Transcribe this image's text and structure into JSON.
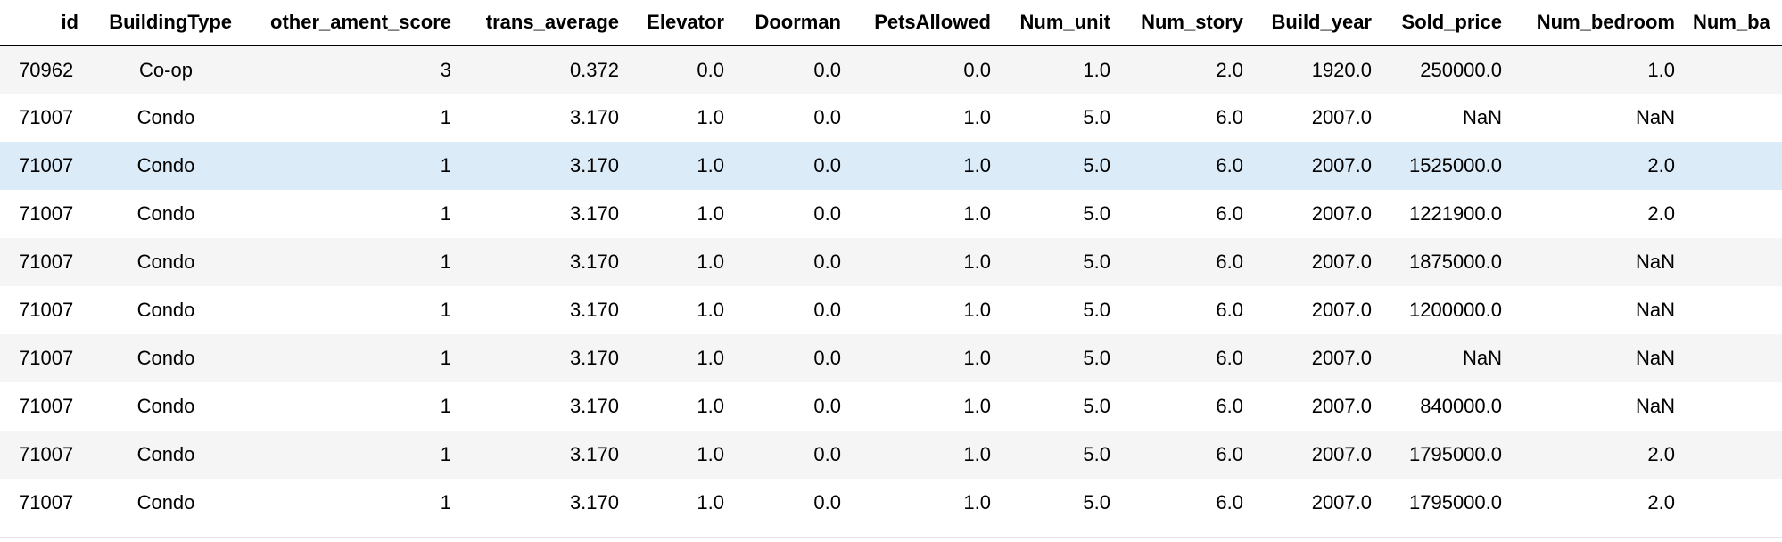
{
  "table": {
    "columns": [
      "id",
      "BuildingType",
      "other_ament_score",
      "trans_average",
      "Elevator",
      "Doorman",
      "PetsAllowed",
      "Num_unit",
      "Num_story",
      "Build_year",
      "Sold_price",
      "Num_bedroom",
      "Num_ba"
    ],
    "rows": [
      [
        "70962",
        "Co-op",
        "3",
        "0.372",
        "0.0",
        "0.0",
        "0.0",
        "1.0",
        "2.0",
        "1920.0",
        "250000.0",
        "1.0",
        ""
      ],
      [
        "71007",
        "Condo",
        "1",
        "3.170",
        "1.0",
        "0.0",
        "1.0",
        "5.0",
        "6.0",
        "2007.0",
        "NaN",
        "NaN",
        ""
      ],
      [
        "71007",
        "Condo",
        "1",
        "3.170",
        "1.0",
        "0.0",
        "1.0",
        "5.0",
        "6.0",
        "2007.0",
        "1525000.0",
        "2.0",
        ""
      ],
      [
        "71007",
        "Condo",
        "1",
        "3.170",
        "1.0",
        "0.0",
        "1.0",
        "5.0",
        "6.0",
        "2007.0",
        "1221900.0",
        "2.0",
        ""
      ],
      [
        "71007",
        "Condo",
        "1",
        "3.170",
        "1.0",
        "0.0",
        "1.0",
        "5.0",
        "6.0",
        "2007.0",
        "1875000.0",
        "NaN",
        ""
      ],
      [
        "71007",
        "Condo",
        "1",
        "3.170",
        "1.0",
        "0.0",
        "1.0",
        "5.0",
        "6.0",
        "2007.0",
        "1200000.0",
        "NaN",
        ""
      ],
      [
        "71007",
        "Condo",
        "1",
        "3.170",
        "1.0",
        "0.0",
        "1.0",
        "5.0",
        "6.0",
        "2007.0",
        "NaN",
        "NaN",
        ""
      ],
      [
        "71007",
        "Condo",
        "1",
        "3.170",
        "1.0",
        "0.0",
        "1.0",
        "5.0",
        "6.0",
        "2007.0",
        "840000.0",
        "NaN",
        ""
      ],
      [
        "71007",
        "Condo",
        "1",
        "3.170",
        "1.0",
        "0.0",
        "1.0",
        "5.0",
        "6.0",
        "2007.0",
        "1795000.0",
        "2.0",
        ""
      ],
      [
        "71007",
        "Condo",
        "1",
        "3.170",
        "1.0",
        "0.0",
        "1.0",
        "5.0",
        "6.0",
        "2007.0",
        "1795000.0",
        "2.0",
        ""
      ]
    ],
    "highlighted_row": 2,
    "colors": {
      "header_rule": "#000000",
      "row_striped": "#f5f5f5",
      "row_plain": "#ffffff",
      "row_highlight": "#dcebf8"
    }
  }
}
